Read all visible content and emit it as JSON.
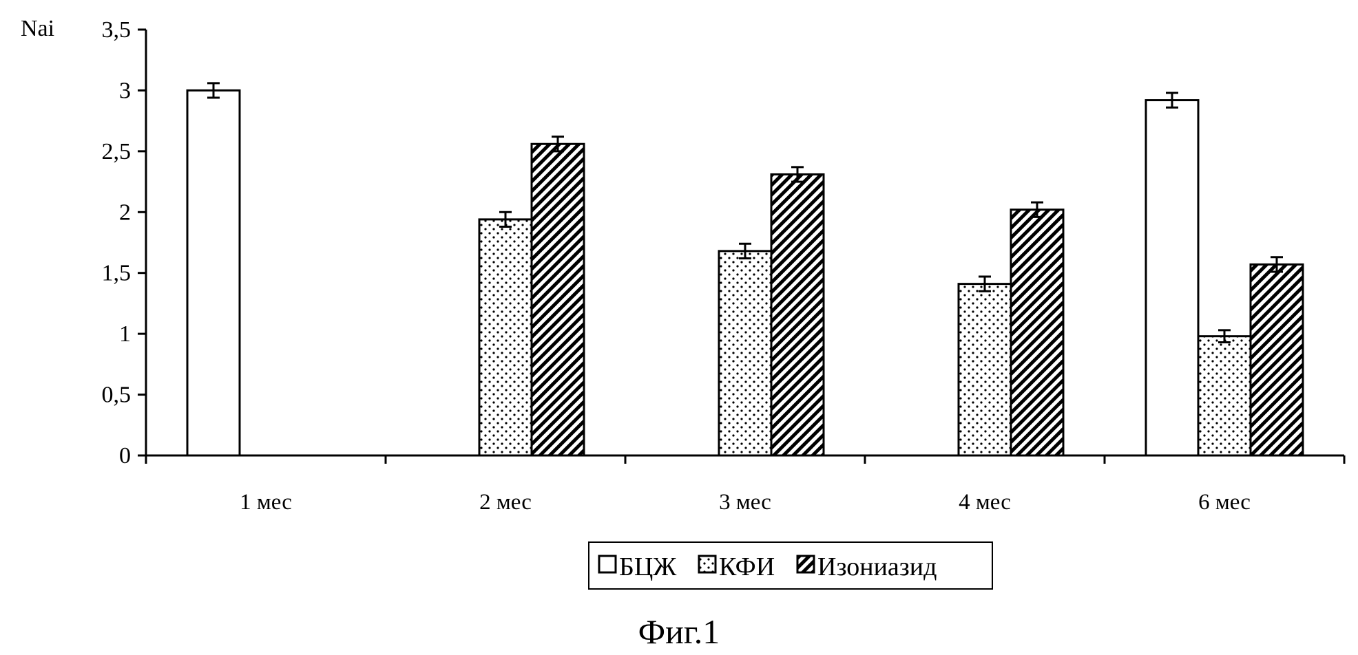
{
  "chart_data": {
    "type": "bar",
    "ylabel": "Nai",
    "ylim": [
      0,
      3.5
    ],
    "yticks": [
      "0",
      "0,5",
      "1",
      "1,5",
      "2",
      "2,5",
      "3",
      "3,5"
    ],
    "categories": [
      "1 мес",
      "2 мес",
      "3 мес",
      "4 мес",
      "6 мес"
    ],
    "series": [
      {
        "name": "БЦЖ",
        "pattern": "white",
        "values": [
          3.0,
          null,
          null,
          null,
          2.92
        ],
        "errors": [
          0.06,
          null,
          null,
          null,
          0.06
        ]
      },
      {
        "name": "КФИ",
        "pattern": "dots",
        "values": [
          null,
          1.94,
          1.68,
          1.41,
          0.98
        ],
        "errors": [
          null,
          0.06,
          0.06,
          0.06,
          0.05
        ]
      },
      {
        "name": "Изониазид",
        "pattern": "hatch",
        "values": [
          null,
          2.56,
          2.31,
          2.02,
          1.57
        ],
        "errors": [
          null,
          0.06,
          0.06,
          0.06,
          0.06
        ]
      }
    ],
    "legend_position": "bottom-center",
    "grid": false
  },
  "caption": "Фиг.1",
  "colors": {
    "ink": "#000000",
    "fill": "#ffffff"
  }
}
